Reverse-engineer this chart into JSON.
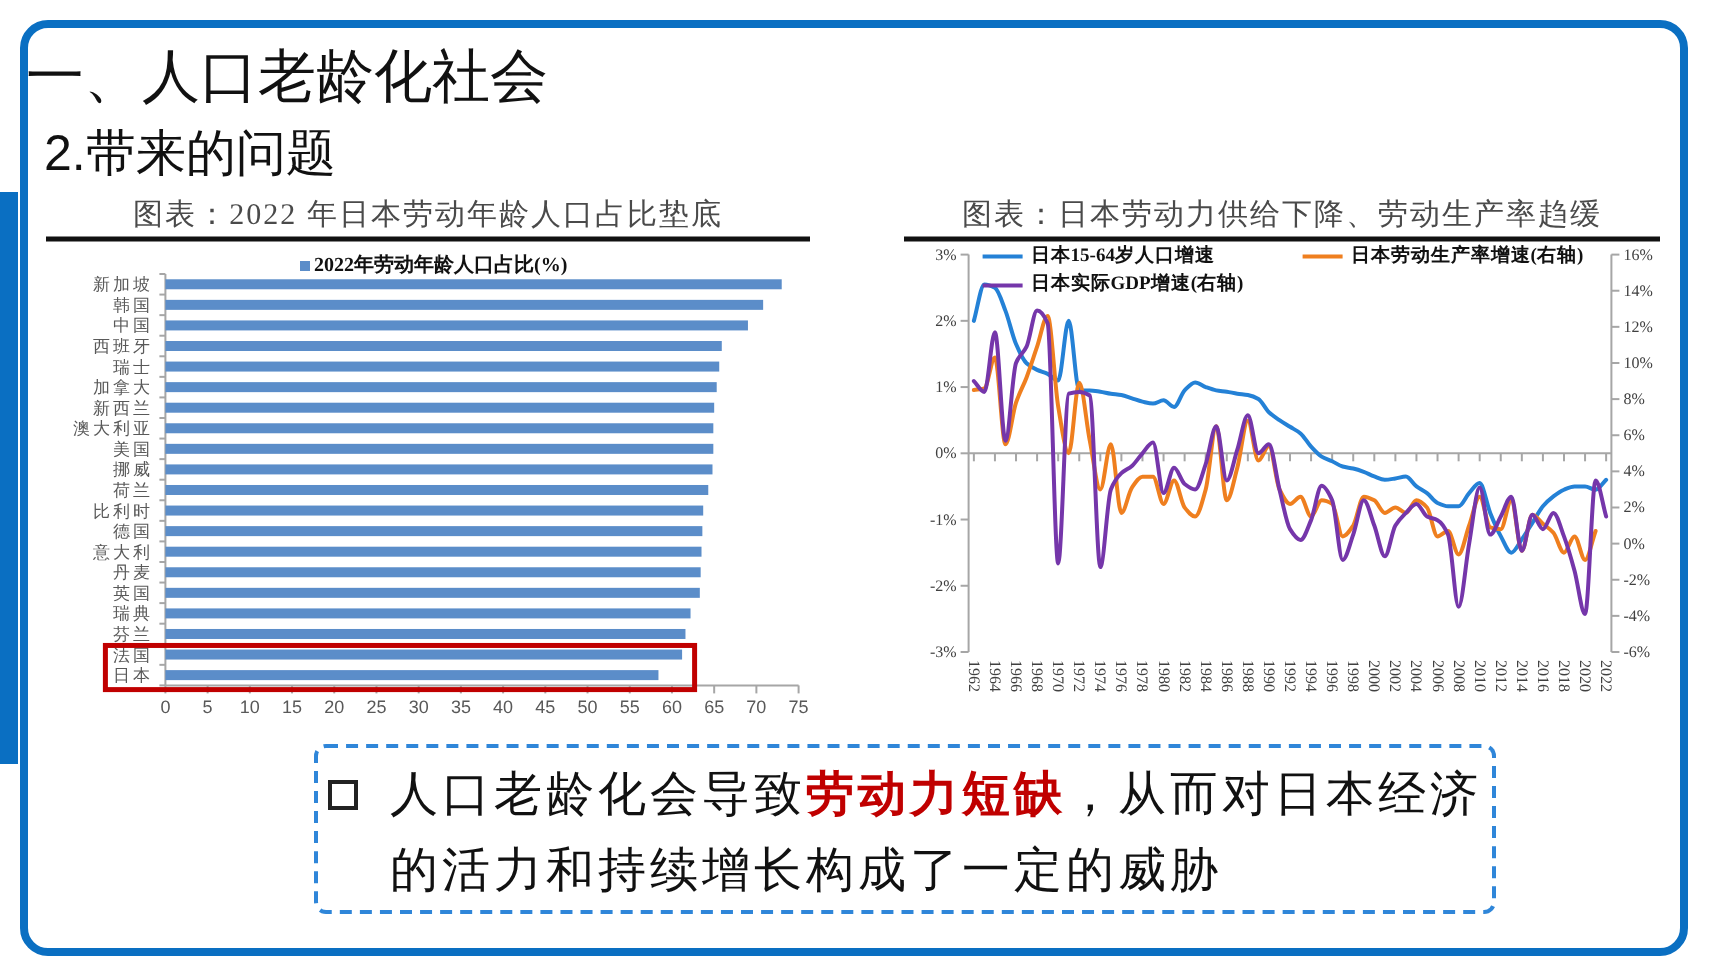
{
  "chart_data": [
    {
      "type": "other",
      "title": "一、人口老龄化社会",
      "subtitle": "2.带来的问题"
    },
    {
      "type": "bar",
      "orientation": "horizontal",
      "title": "图表：2022 年日本劳动年龄人口占比垫底",
      "legend": "top",
      "categories": [
        "新加坡",
        "韩国",
        "中国",
        "西班牙",
        "瑞士",
        "加拿大",
        "新西兰",
        "澳大利亚",
        "美国",
        "挪威",
        "荷兰",
        "比利时",
        "德国",
        "意大利",
        "丹麦",
        "英国",
        "瑞典",
        "芬兰",
        "法国",
        "日本"
      ],
      "series": [
        {
          "name": "2022年劳动年龄人口占比(%)",
          "color": "#5b8dc9",
          "values": [
            73.0,
            70.8,
            69.0,
            65.9,
            65.6,
            65.3,
            65.0,
            64.9,
            64.9,
            64.8,
            64.3,
            63.7,
            63.6,
            63.5,
            63.4,
            63.3,
            62.2,
            61.6,
            61.2,
            58.4
          ]
        }
      ],
      "xlim": [
        0,
        75
      ],
      "xticks": [
        0,
        5,
        10,
        15,
        20,
        25,
        30,
        35,
        40,
        45,
        50,
        55,
        60,
        65,
        70,
        75
      ]
    },
    {
      "type": "line",
      "title": "图表：日本劳动力供给下降、劳动生产率趋缓",
      "legend": "top",
      "x": [
        1962,
        1963,
        1964,
        1965,
        1966,
        1967,
        1968,
        1969,
        1970,
        1971,
        1972,
        1973,
        1974,
        1975,
        1976,
        1977,
        1978,
        1979,
        1980,
        1981,
        1982,
        1983,
        1984,
        1985,
        1986,
        1987,
        1988,
        1989,
        1990,
        1991,
        1992,
        1993,
        1994,
        1995,
        1996,
        1997,
        1998,
        1999,
        2000,
        2001,
        2002,
        2003,
        2004,
        2005,
        2006,
        2007,
        2008,
        2009,
        2010,
        2011,
        2012,
        2013,
        2014,
        2015,
        2016,
        2017,
        2018,
        2019,
        2020,
        2021,
        2022
      ],
      "xlim": [
        1961.5,
        2022.5
      ],
      "xticks": [
        1962,
        1964,
        1966,
        1968,
        1970,
        1972,
        1974,
        1976,
        1978,
        1980,
        1982,
        1984,
        1986,
        1988,
        1990,
        1992,
        1994,
        1996,
        1998,
        2000,
        2002,
        2004,
        2006,
        2008,
        2010,
        2012,
        2014,
        2016,
        2018,
        2020,
        2022
      ],
      "ylim": [
        -3,
        3
      ],
      "yticks": [
        {
          "value": -3,
          "label": "-3%"
        },
        {
          "value": -2,
          "label": "-2%"
        },
        {
          "value": -1,
          "label": "-1%"
        },
        {
          "value": 0,
          "label": "0%"
        },
        {
          "value": 1,
          "label": "1%"
        },
        {
          "value": 2,
          "label": "2%"
        },
        {
          "value": 3,
          "label": "3%"
        }
      ],
      "y2lim": [
        -6,
        16
      ],
      "y2ticks": [
        {
          "value": -6,
          "label": "-6%"
        },
        {
          "value": -4,
          "label": "-4%"
        },
        {
          "value": -2,
          "label": "-2%"
        },
        {
          "value": 0,
          "label": "0%"
        },
        {
          "value": 2,
          "label": "2%"
        },
        {
          "value": 4,
          "label": "4%"
        },
        {
          "value": 6,
          "label": "6%"
        },
        {
          "value": 8,
          "label": "8%"
        },
        {
          "value": 10,
          "label": "10%"
        },
        {
          "value": 12,
          "label": "12%"
        },
        {
          "value": 14,
          "label": "14%"
        },
        {
          "value": 16,
          "label": "16%"
        }
      ],
      "series": [
        {
          "name": "日本15-64岁人口增速",
          "color": "#2481d6",
          "values": [
            2.0,
            2.55,
            2.5,
            2.15,
            1.65,
            1.36,
            1.26,
            1.2,
            1.1,
            2.0,
            0.95,
            0.95,
            0.93,
            0.9,
            0.88,
            0.83,
            0.78,
            0.75,
            0.8,
            0.7,
            0.95,
            1.07,
            1.0,
            0.95,
            0.93,
            0.9,
            0.88,
            0.82,
            0.62,
            0.5,
            0.4,
            0.3,
            0.1,
            -0.05,
            -0.12,
            -0.2,
            -0.23,
            -0.28,
            -0.35,
            -0.4,
            -0.38,
            -0.35,
            -0.5,
            -0.6,
            -0.75,
            -0.8,
            -0.8,
            -0.6,
            -0.45,
            -0.9,
            -1.25,
            -1.5,
            -1.3,
            -1.05,
            -0.8,
            -0.65,
            -0.55,
            -0.5,
            -0.5,
            -0.55,
            -0.4
          ]
        },
        {
          "name": "日本劳动生产率增速(右轴)",
          "color": "#ef7f1f",
          "axis": "y2",
          "values": [
            8.5,
            8.6,
            10.3,
            5.5,
            7.8,
            9.2,
            10.9,
            12.6,
            7.6,
            5.0,
            8.9,
            5.7,
            3.0,
            5.5,
            1.7,
            3.1,
            3.7,
            3.7,
            2.2,
            3.5,
            2.0,
            1.5,
            3.0,
            6.5,
            2.4,
            4.2,
            6.8,
            4.6,
            5.4,
            3.0,
            2.2,
            2.6,
            1.5,
            2.4,
            2.2,
            0.4,
            1.0,
            2.6,
            2.4,
            1.7,
            2.0,
            1.7,
            2.4,
            2.0,
            0.4,
            0.7,
            -0.6,
            1.0,
            2.6,
            0.9,
            0.8,
            2.4,
            -0.4,
            1.6,
            1.1,
            0.6,
            -0.5,
            0.4,
            -0.9,
            0.7,
            null
          ]
        },
        {
          "name": "日本实际GDP增速(右轴)",
          "color": "#7536aa",
          "axis": "y2",
          "values": [
            9.0,
            8.4,
            11.7,
            5.7,
            10.0,
            10.9,
            12.9,
            12.2,
            -1.1,
            8.3,
            8.4,
            8.2,
            -1.3,
            3.0,
            3.9,
            4.3,
            5.0,
            5.6,
            2.8,
            4.2,
            3.3,
            3.0,
            4.4,
            6.5,
            3.5,
            5.2,
            7.1,
            5.0,
            5.5,
            3.0,
            0.8,
            0.2,
            1.3,
            3.2,
            2.4,
            -0.9,
            0.5,
            2.4,
            1.0,
            -0.7,
            1.0,
            1.7,
            2.2,
            1.5,
            1.3,
            0.5,
            -3.5,
            0.0,
            3.1,
            0.5,
            1.5,
            2.6,
            -0.4,
            1.6,
            0.8,
            1.7,
            0.4,
            -1.5,
            -3.9,
            3.5,
            1.5
          ]
        }
      ]
    },
    {
      "type": "other",
      "annotations": [
        "人口老龄化会导致",
        "劳动力短缺",
        "，从而对日本经济",
        "的活力和持续增长构成了一定的威胁"
      ]
    }
  ]
}
